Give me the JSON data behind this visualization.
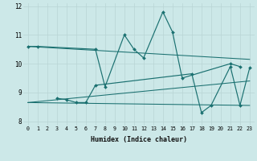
{
  "xlabel": "Humidex (Indice chaleur)",
  "line1_x": [
    0,
    1,
    7,
    8,
    10,
    11,
    12,
    14,
    15,
    16,
    21,
    22
  ],
  "line1_y": [
    10.6,
    10.6,
    10.5,
    9.2,
    11.0,
    10.5,
    10.2,
    11.8,
    11.1,
    9.5,
    10.0,
    9.9
  ],
  "line2_x": [
    3,
    4,
    5,
    6,
    7,
    17,
    18,
    19,
    21,
    22,
    23
  ],
  "line2_y": [
    8.8,
    8.75,
    8.65,
    8.65,
    9.25,
    9.65,
    8.3,
    8.55,
    9.9,
    8.55,
    9.85
  ],
  "trend1_x": [
    0,
    23
  ],
  "trend1_y": [
    10.6,
    10.15
  ],
  "trend2_x": [
    0,
    23
  ],
  "trend2_y": [
    8.65,
    9.4
  ],
  "trend3_x": [
    0,
    23
  ],
  "trend3_y": [
    8.65,
    8.55
  ],
  "ylim": [
    7.85,
    12.1
  ],
  "xlim": [
    -0.5,
    23.5
  ],
  "bg_color": "#cce8e8",
  "line_color": "#1a7070",
  "grid_color": "#b8d4d4",
  "yticks": [
    8,
    9,
    10,
    11,
    12
  ],
  "xticks": [
    0,
    1,
    2,
    3,
    4,
    5,
    6,
    7,
    8,
    9,
    10,
    11,
    12,
    13,
    14,
    15,
    16,
    17,
    18,
    19,
    20,
    21,
    22,
    23
  ]
}
